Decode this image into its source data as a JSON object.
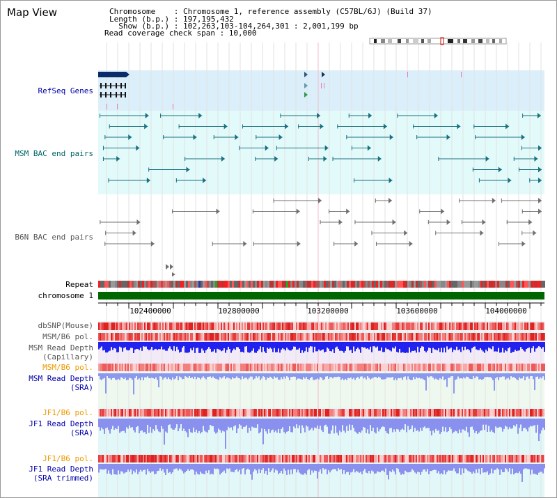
{
  "title": "Map View",
  "info": {
    "chromosome": "Chromosome    : Chromosome 1, reference assembly (C57BL/6J) (Build 37)",
    "length": "Length (b.p.) : 197,195,432",
    "show": "  Show (b.p.) : 102,263,103-104,264,301 : 2,001,199 bp",
    "coverage": "Read coverage check span : 10,000"
  },
  "tracks": {
    "refseq": "RefSeq Genes",
    "msm_bac": "MSM BAC end pairs",
    "b6n_bac": "B6N BAC end pairs",
    "repeat": "Repeat",
    "chromosome": "chromosome 1",
    "dbsnp": "dbSNP(Mouse)",
    "msm_b6_pol": "MSM/B6 pol.",
    "msm_depth_cap_1": "MSM Read Depth",
    "msm_depth_cap_2": "(Capillary)",
    "msm_b6_pol2": "MSM/B6 pol.",
    "msm_depth_sra_1": "MSM Read Depth",
    "msm_depth_sra_2": "(SRA)",
    "jf1_b6_pol": "JF1/B6 pol.",
    "jf1_depth_1": "JF1 Read Depth",
    "jf1_depth_2": "(SRA)",
    "jf1_b6_pol2": "JF1/B6 pol.",
    "jf1_trim_1": "JF1 Read Depth",
    "jf1_trim_2": "(SRA trimmed)"
  },
  "axis": {
    "ticks": [
      "102400000",
      "102800000",
      "103200000",
      "103600000",
      "104000000"
    ]
  },
  "colors": {
    "label_blue": "#0000aa",
    "label_teal": "#006666",
    "label_gray": "#555555",
    "label_orange": "#ee9900",
    "chromosome_bar": "#006600",
    "refseq_bg": "#dbeffa",
    "msm_bg": "#e2fafa",
    "depth_blue": "#2222ee"
  }
}
